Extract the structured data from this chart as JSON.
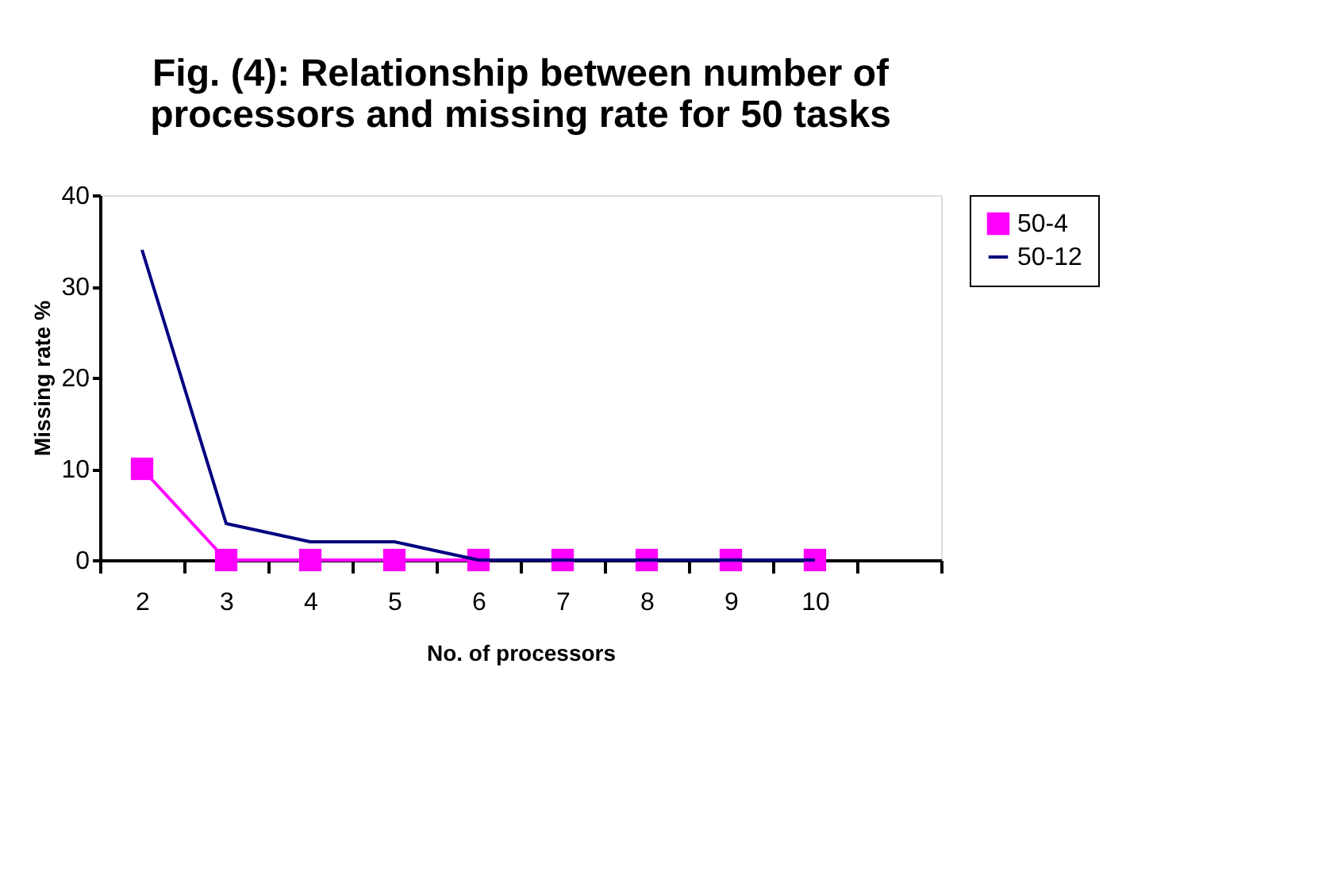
{
  "chart_data": {
    "type": "line",
    "title": "Fig. (4): Relationship between number of processors and  missing rate for 50 tasks",
    "xlabel": "No. of processors",
    "ylabel": "Missing rate %",
    "categories": [
      "2",
      "3",
      "4",
      "5",
      "6",
      "7",
      "8",
      "9",
      "10",
      null
    ],
    "series": [
      {
        "name": "50-4",
        "color": "#ff00ff",
        "marker": "square",
        "values": [
          10,
          0,
          0,
          0,
          0,
          0,
          0,
          0,
          0,
          null
        ]
      },
      {
        "name": "50-12",
        "color": "#000080",
        "marker": "none",
        "values": [
          34,
          4,
          2,
          2,
          0,
          0,
          0,
          0,
          0,
          null
        ]
      }
    ],
    "ylim": [
      0,
      40
    ],
    "yticks": [
      0,
      10,
      20,
      30,
      40
    ],
    "grid": false,
    "legend": "right"
  }
}
